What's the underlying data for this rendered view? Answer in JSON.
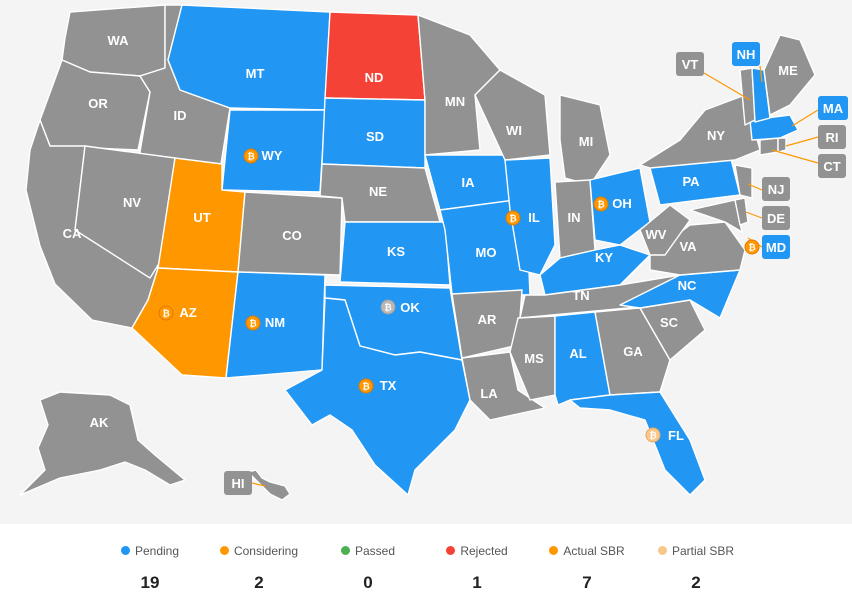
{
  "colors": {
    "pending": "#2196f3",
    "considering": "#ff9800",
    "passed": "#4caf50",
    "rejected": "#f44336",
    "none": "#929292",
    "actual_sbr": "#ff9800",
    "partial_sbr": "#f8c78a"
  },
  "states": {
    "WA": "WA",
    "OR": "OR",
    "CA": "CA",
    "ID": "ID",
    "NV": "NV",
    "MT": "MT",
    "WY": "WY",
    "UT": "UT",
    "AZ": "AZ",
    "CO": "CO",
    "NM": "NM",
    "ND": "ND",
    "SD": "SD",
    "NE": "NE",
    "KS": "KS",
    "OK": "OK",
    "TX": "TX",
    "MN": "MN",
    "IA": "IA",
    "MO": "MO",
    "AR": "AR",
    "LA": "LA",
    "WI": "WI",
    "IL": "IL",
    "MI": "MI",
    "IN": "IN",
    "OH": "OH",
    "KY": "KY",
    "TN": "TN",
    "MS": "MS",
    "AL": "AL",
    "GA": "GA",
    "FL": "FL",
    "SC": "SC",
    "NC": "NC",
    "VA": "VA",
    "WV": "WV",
    "PA": "PA",
    "NY": "NY",
    "ME": "ME",
    "AK": "AK"
  },
  "callouts": {
    "VT": "VT",
    "NH": "NH",
    "MA": "MA",
    "RI": "RI",
    "CT": "CT",
    "NJ": "NJ",
    "DE": "DE",
    "MD": "MD",
    "HI": "HI"
  },
  "legend": [
    {
      "key": "pending",
      "label": "Pending",
      "count": "19"
    },
    {
      "key": "considering",
      "label": "Considering",
      "count": "2"
    },
    {
      "key": "passed",
      "label": "Passed",
      "count": "0"
    },
    {
      "key": "rejected",
      "label": "Rejected",
      "count": "1"
    },
    {
      "key": "actual_sbr",
      "label": "Actual SBR",
      "count": "7"
    },
    {
      "key": "partial_sbr",
      "label": "Partial SBR",
      "count": "2"
    }
  ]
}
